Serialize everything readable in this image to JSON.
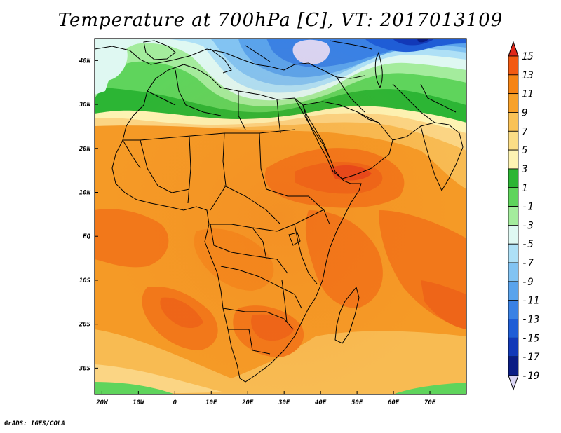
{
  "title": "Temperature at 700hPa [C], VT: 2017013109",
  "credit": "GrADS: IGES/COLA",
  "map": {
    "lon_range": [
      -22,
      80
    ],
    "lat_range": [
      -36,
      45
    ],
    "lon_ticks": [
      {
        "value": -20,
        "label": "20W"
      },
      {
        "value": -10,
        "label": "10W"
      },
      {
        "value": 0,
        "label": "0"
      },
      {
        "value": 10,
        "label": "10E"
      },
      {
        "value": 20,
        "label": "20E"
      },
      {
        "value": 30,
        "label": "30E"
      },
      {
        "value": 40,
        "label": "40E"
      },
      {
        "value": 50,
        "label": "50E"
      },
      {
        "value": 60,
        "label": "60E"
      },
      {
        "value": 70,
        "label": "70E"
      }
    ],
    "lat_ticks": [
      {
        "value": 40,
        "label": "40N"
      },
      {
        "value": 30,
        "label": "30N"
      },
      {
        "value": 20,
        "label": "20N"
      },
      {
        "value": 10,
        "label": "10N"
      },
      {
        "value": 0,
        "label": "EQ"
      },
      {
        "value": -10,
        "label": "10S"
      },
      {
        "value": -20,
        "label": "20S"
      },
      {
        "value": -30,
        "label": "30S"
      }
    ]
  },
  "colorbar": {
    "labels": [
      "15",
      "13",
      "11",
      "9",
      "7",
      "5",
      "3",
      "1",
      "-1",
      "-3",
      "-5",
      "-7",
      "-9",
      "-11",
      "-13",
      "-15",
      "-17",
      "-19"
    ],
    "colors": [
      "#e0281a",
      "#f25a12",
      "#f58415",
      "#f7a12a",
      "#f9c257",
      "#fbdd86",
      "#fdf3b3",
      "#2cb534",
      "#5fd45c",
      "#a4ec9d",
      "#dff8f2",
      "#aee0f6",
      "#82c3f2",
      "#5aa3ec",
      "#3a81e4",
      "#1f5dd6",
      "#1239b8",
      "#0a1c84",
      "#d9d4f2"
    ]
  }
}
